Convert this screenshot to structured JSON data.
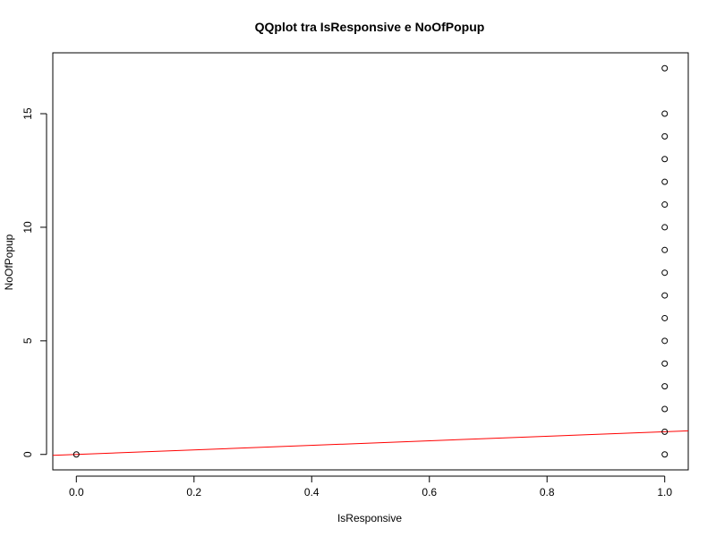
{
  "chart_data": {
    "type": "scatter",
    "title": "QQplot tra IsResponsive e NoOfPopup",
    "xlabel": "IsResponsive",
    "ylabel": "NoOfPopup",
    "xlim": [
      -0.04,
      1.04
    ],
    "ylim": [
      -0.68,
      17.68
    ],
    "x_ticks": [
      0.0,
      0.2,
      0.4,
      0.6,
      0.8,
      1.0
    ],
    "x_tick_labels": [
      "0.0",
      "0.2",
      "0.4",
      "0.6",
      "0.8",
      "1.0"
    ],
    "y_ticks": [
      0,
      5,
      10,
      15
    ],
    "y_tick_labels": [
      "0",
      "5",
      "10",
      "15"
    ],
    "grid": false,
    "series": [
      {
        "points": [
          {
            "x": 0,
            "y": 0
          },
          {
            "x": 1,
            "y": 0
          },
          {
            "x": 1,
            "y": 1
          },
          {
            "x": 1,
            "y": 2
          },
          {
            "x": 1,
            "y": 3
          },
          {
            "x": 1,
            "y": 4
          },
          {
            "x": 1,
            "y": 5
          },
          {
            "x": 1,
            "y": 6
          },
          {
            "x": 1,
            "y": 7
          },
          {
            "x": 1,
            "y": 8
          },
          {
            "x": 1,
            "y": 9
          },
          {
            "x": 1,
            "y": 10
          },
          {
            "x": 1,
            "y": 11
          },
          {
            "x": 1,
            "y": 12
          },
          {
            "x": 1,
            "y": 13
          },
          {
            "x": 1,
            "y": 14
          },
          {
            "x": 1,
            "y": 15
          },
          {
            "x": 1,
            "y": 17
          }
        ]
      }
    ],
    "reference_line": {
      "intercept": 0,
      "slope": 1,
      "color": "#ff0000"
    },
    "point_color": "#000000"
  }
}
